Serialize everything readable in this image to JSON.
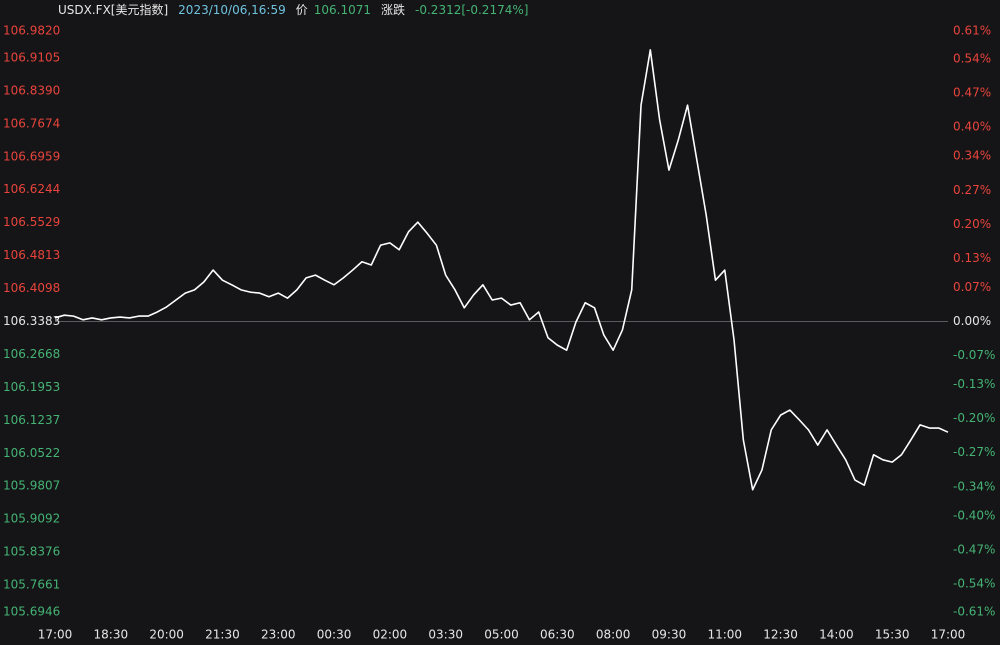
{
  "chart_data": {
    "type": "line",
    "title": "USDX.FX[美元指数]",
    "datetime": "2023/10/06,16:59",
    "price_label": "价",
    "price": 106.1071,
    "change_label": "涨跌",
    "change": "-0.2312[-0.2174%]",
    "line_color": "#ffffff",
    "up_color": "#e8443c",
    "down_color": "#45b374",
    "flat_color": "#e6e6e6",
    "reference": 106.3383,
    "x": [
      "17:00",
      "17:15",
      "17:30",
      "17:45",
      "18:00",
      "18:15",
      "18:30",
      "18:45",
      "19:00",
      "19:15",
      "19:30",
      "19:45",
      "20:00",
      "20:15",
      "20:30",
      "20:45",
      "21:00",
      "21:15",
      "21:30",
      "21:45",
      "22:00",
      "22:15",
      "22:30",
      "22:45",
      "23:00",
      "23:15",
      "23:30",
      "23:45",
      "00:00",
      "00:15",
      "00:30",
      "00:45",
      "01:00",
      "01:15",
      "01:30",
      "01:45",
      "02:00",
      "02:15",
      "02:30",
      "02:45",
      "03:00",
      "03:15",
      "03:30",
      "03:45",
      "04:00",
      "04:15",
      "04:30",
      "04:45",
      "05:00",
      "05:15",
      "05:30",
      "05:45",
      "06:00",
      "06:15",
      "06:30",
      "06:45",
      "07:00",
      "07:15",
      "07:30",
      "07:45",
      "08:00",
      "08:15",
      "08:30",
      "08:45",
      "09:00",
      "09:15",
      "09:30",
      "09:45",
      "10:00",
      "10:15",
      "10:30",
      "10:45",
      "11:00",
      "11:15",
      "11:30",
      "11:45",
      "12:00",
      "12:15",
      "12:30",
      "12:45",
      "13:00",
      "13:15",
      "13:30",
      "13:45",
      "14:00",
      "14:15",
      "14:30",
      "14:45",
      "15:00",
      "15:15",
      "15:30",
      "15:45",
      "16:00",
      "16:15",
      "16:30",
      "16:45",
      "17:00"
    ],
    "values": [
      106.346,
      106.352,
      106.35,
      106.342,
      106.346,
      106.342,
      106.346,
      106.348,
      106.346,
      106.35,
      106.35,
      106.359,
      106.37,
      106.385,
      106.4,
      106.407,
      106.424,
      106.45,
      106.428,
      106.418,
      106.407,
      106.402,
      106.4,
      106.392,
      106.4,
      106.389,
      106.407,
      106.433,
      106.439,
      106.428,
      106.418,
      106.433,
      106.45,
      106.468,
      106.461,
      106.504,
      106.509,
      106.494,
      106.533,
      106.554,
      106.53,
      106.504,
      106.439,
      106.407,
      106.368,
      106.396,
      106.418,
      106.385,
      106.389,
      106.374,
      106.379,
      106.342,
      106.359,
      106.303,
      106.287,
      106.276,
      106.337,
      106.379,
      106.368,
      106.309,
      106.276,
      106.32,
      106.407,
      106.808,
      106.928,
      106.776,
      106.667,
      106.732,
      106.808,
      106.689,
      106.57,
      106.428,
      106.45,
      106.298,
      106.081,
      105.973,
      106.016,
      106.103,
      106.135,
      106.146,
      106.125,
      106.103,
      106.07,
      106.103,
      106.07,
      106.038,
      105.994,
      105.983,
      106.049,
      106.038,
      106.033,
      106.049,
      106.081,
      106.114,
      106.107,
      106.107,
      106.098
    ],
    "xtick_every": 6,
    "ylim": [
      105.6946,
      106.982
    ],
    "yticks": [
      {
        "value": 106.982,
        "label": "106.9820"
      },
      106.9105,
      {
        "value": 106.839,
        "label": "106.8390"
      },
      106.7674,
      106.6959,
      106.6244,
      106.5529,
      106.4813,
      106.4098,
      106.3383,
      106.2668,
      106.1953,
      106.1237,
      106.0522,
      105.9807,
      105.9092,
      105.8376,
      105.7661,
      105.6946
    ],
    "y2lim": [
      -0.61,
      0.61
    ],
    "y2ticks": [
      {
        "value": 0.61,
        "label": "0.61%"
      },
      {
        "value": 0.54,
        "label": "0.54%"
      },
      {
        "value": 0.47,
        "label": "0.47%"
      },
      {
        "value": 0.4,
        "label": "0.40%"
      },
      {
        "value": 0.34,
        "label": "0.34%"
      },
      {
        "value": 0.27,
        "label": "0.27%"
      },
      {
        "value": 0.2,
        "label": "0.20%"
      },
      {
        "value": 0.13,
        "label": "0.13%"
      },
      {
        "value": 0.07,
        "label": "0.07%"
      },
      {
        "value": 0,
        "label": "0.00%"
      },
      {
        "value": -0.07,
        "label": "-0.07%"
      },
      {
        "value": -0.13,
        "label": "-0.13%"
      },
      {
        "value": -0.2,
        "label": "-0.20%"
      },
      {
        "value": -0.27,
        "label": "-0.27%"
      },
      {
        "value": -0.34,
        "label": "-0.34%"
      },
      {
        "value": -0.4,
        "label": "-0.40%"
      },
      {
        "value": -0.47,
        "label": "-0.47%"
      },
      {
        "value": -0.54,
        "label": "-0.54%"
      },
      {
        "value": -0.61,
        "label": "-0.61%"
      }
    ]
  }
}
